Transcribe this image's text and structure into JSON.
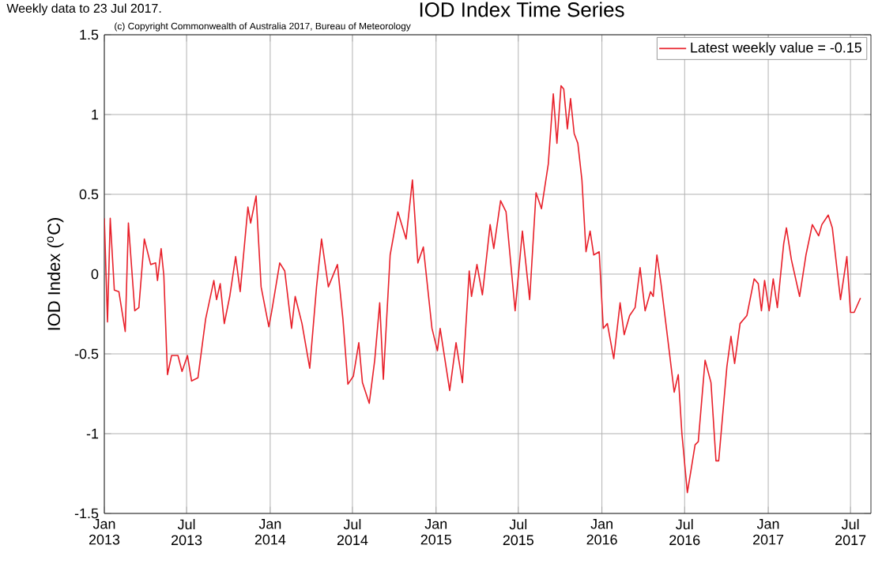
{
  "chart_data": {
    "type": "line",
    "title": "IOD Index Time Series",
    "ylabel": "IOD Index ($^{o}$C)",
    "annotations": [
      "Weekly data to 23 Jul 2017.",
      "(c) Copyright Commonwealth of Australia 2017, Bureau of Meteorology"
    ],
    "xlim": [
      "2013-01-01",
      "2017-08-15"
    ],
    "ylim": [
      -1.5,
      1.5
    ],
    "xticks": [
      {
        "value": "2013-01-01",
        "label": "Jan 2013"
      },
      {
        "value": "2013-07-01",
        "label": "Jul 2013"
      },
      {
        "value": "2014-01-01",
        "label": "Jan 2014"
      },
      {
        "value": "2014-07-01",
        "label": "Jul 2014"
      },
      {
        "value": "2015-01-01",
        "label": "Jan 2015"
      },
      {
        "value": "2015-07-01",
        "label": "Jul 2015"
      },
      {
        "value": "2016-01-01",
        "label": "Jan 2016"
      },
      {
        "value": "2016-07-01",
        "label": "Jul 2016"
      },
      {
        "value": "2017-01-01",
        "label": "Jan 2017"
      },
      {
        "value": "2017-07-01",
        "label": "Jul 2017"
      }
    ],
    "yticks": [
      -1.5,
      -1,
      -0.5,
      0,
      0.5,
      1,
      1.5
    ],
    "grid": true,
    "legend": "top right",
    "series": [
      {
        "name": "Latest weekly value = -0.15",
        "color": "#e8202a",
        "x": [
          "2013-01-01",
          "2013-01-08",
          "2013-01-14",
          "2013-01-23",
          "2013-02-02",
          "2013-02-16",
          "2013-02-23",
          "2013-03-09",
          "2013-03-18",
          "2013-03-30",
          "2013-04-13",
          "2013-04-24",
          "2013-04-28",
          "2013-05-06",
          "2013-05-12",
          "2013-05-20",
          "2013-05-29",
          "2013-06-12",
          "2013-06-21",
          "2013-07-03",
          "2013-07-12",
          "2013-07-26",
          "2013-08-12",
          "2013-08-30",
          "2013-09-05",
          "2013-09-13",
          "2013-09-22",
          "2013-10-04",
          "2013-10-17",
          "2013-10-27",
          "2013-11-13",
          "2013-11-19",
          "2013-12-01",
          "2013-12-12",
          "2013-12-29",
          "2014-01-04",
          "2014-01-22",
          "2014-02-02",
          "2014-02-17",
          "2014-02-25",
          "2014-03-12",
          "2014-03-29",
          "2014-04-13",
          "2014-04-24",
          "2014-05-09",
          "2014-05-29",
          "2014-06-10",
          "2014-06-21",
          "2014-07-03",
          "2014-07-15",
          "2014-07-23",
          "2014-08-07",
          "2014-08-19",
          "2014-08-30",
          "2014-09-07",
          "2014-09-22",
          "2014-10-09",
          "2014-10-27",
          "2014-11-10",
          "2014-11-22",
          "2014-12-04",
          "2014-12-23",
          "2015-01-04",
          "2015-01-10",
          "2015-01-31",
          "2015-02-14",
          "2015-02-28",
          "2015-03-15",
          "2015-03-20",
          "2015-04-01",
          "2015-04-13",
          "2015-04-30",
          "2015-05-08",
          "2015-05-23",
          "2015-06-04",
          "2015-06-24",
          "2015-07-10",
          "2015-07-26",
          "2015-08-09",
          "2015-08-21",
          "2015-09-05",
          "2015-09-16",
          "2015-09-24",
          "2015-10-03",
          "2015-10-09",
          "2015-10-17",
          "2015-10-24",
          "2015-11-01",
          "2015-11-09",
          "2015-11-18",
          "2015-11-27",
          "2015-12-06",
          "2015-12-14",
          "2015-12-26",
          "2016-01-04",
          "2016-01-13",
          "2016-01-27",
          "2016-02-10",
          "2016-02-19",
          "2016-03-02",
          "2016-03-14",
          "2016-03-25",
          "2016-04-05",
          "2016-04-17",
          "2016-04-23",
          "2016-05-01",
          "2016-05-10",
          "2016-05-28",
          "2016-06-08",
          "2016-06-17",
          "2016-06-25",
          "2016-07-07",
          "2016-07-15",
          "2016-07-24",
          "2016-07-31",
          "2016-08-15",
          "2016-08-28",
          "2016-09-08",
          "2016-09-14",
          "2016-10-02",
          "2016-10-11",
          "2016-10-19",
          "2016-10-31",
          "2016-11-15",
          "2016-12-01",
          "2016-12-10",
          "2016-12-17",
          "2016-12-24",
          "2017-01-03",
          "2017-01-12",
          "2017-01-21",
          "2017-02-04",
          "2017-02-10",
          "2017-02-21",
          "2017-03-11",
          "2017-03-25",
          "2017-04-08",
          "2017-04-22",
          "2017-04-29",
          "2017-05-13",
          "2017-05-22",
          "2017-06-09",
          "2017-06-23",
          "2017-07-01",
          "2017-07-09",
          "2017-07-23"
        ],
        "values": [
          0.35,
          -0.3,
          0.35,
          -0.1,
          -0.11,
          -0.36,
          0.32,
          -0.23,
          -0.21,
          0.22,
          0.06,
          0.07,
          -0.04,
          0.16,
          -0.01,
          -0.63,
          -0.51,
          -0.51,
          -0.61,
          -0.51,
          -0.67,
          -0.65,
          -0.28,
          -0.04,
          -0.16,
          -0.06,
          -0.31,
          -0.14,
          0.11,
          -0.11,
          0.42,
          0.32,
          0.49,
          -0.08,
          -0.33,
          -0.24,
          0.07,
          0.02,
          -0.34,
          -0.14,
          -0.31,
          -0.59,
          -0.08,
          0.22,
          -0.08,
          0.06,
          -0.28,
          -0.69,
          -0.64,
          -0.43,
          -0.68,
          -0.81,
          -0.54,
          -0.18,
          -0.66,
          0.12,
          0.39,
          0.22,
          0.59,
          0.07,
          0.17,
          -0.34,
          -0.48,
          -0.34,
          -0.73,
          -0.43,
          -0.68,
          0.02,
          -0.14,
          0.06,
          -0.13,
          0.31,
          0.16,
          0.46,
          0.39,
          -0.23,
          0.27,
          -0.16,
          0.51,
          0.41,
          0.69,
          1.13,
          0.82,
          1.18,
          1.16,
          0.91,
          1.1,
          0.88,
          0.82,
          0.59,
          0.14,
          0.27,
          0.12,
          0.14,
          -0.34,
          -0.31,
          -0.53,
          -0.18,
          -0.38,
          -0.26,
          -0.21,
          0.04,
          -0.23,
          -0.11,
          -0.14,
          0.12,
          -0.06,
          -0.48,
          -0.74,
          -0.63,
          -1.0,
          -1.37,
          -1.23,
          -1.07,
          -1.05,
          -0.54,
          -0.68,
          -1.17,
          -1.17,
          -0.58,
          -0.39,
          -0.56,
          -0.31,
          -0.26,
          -0.03,
          -0.06,
          -0.23,
          -0.04,
          -0.23,
          -0.03,
          -0.21,
          0.19,
          0.29,
          0.09,
          -0.14,
          0.12,
          0.31,
          0.24,
          0.31,
          0.37,
          0.29,
          -0.16,
          0.11,
          -0.24,
          -0.24,
          -0.15
        ]
      }
    ]
  }
}
